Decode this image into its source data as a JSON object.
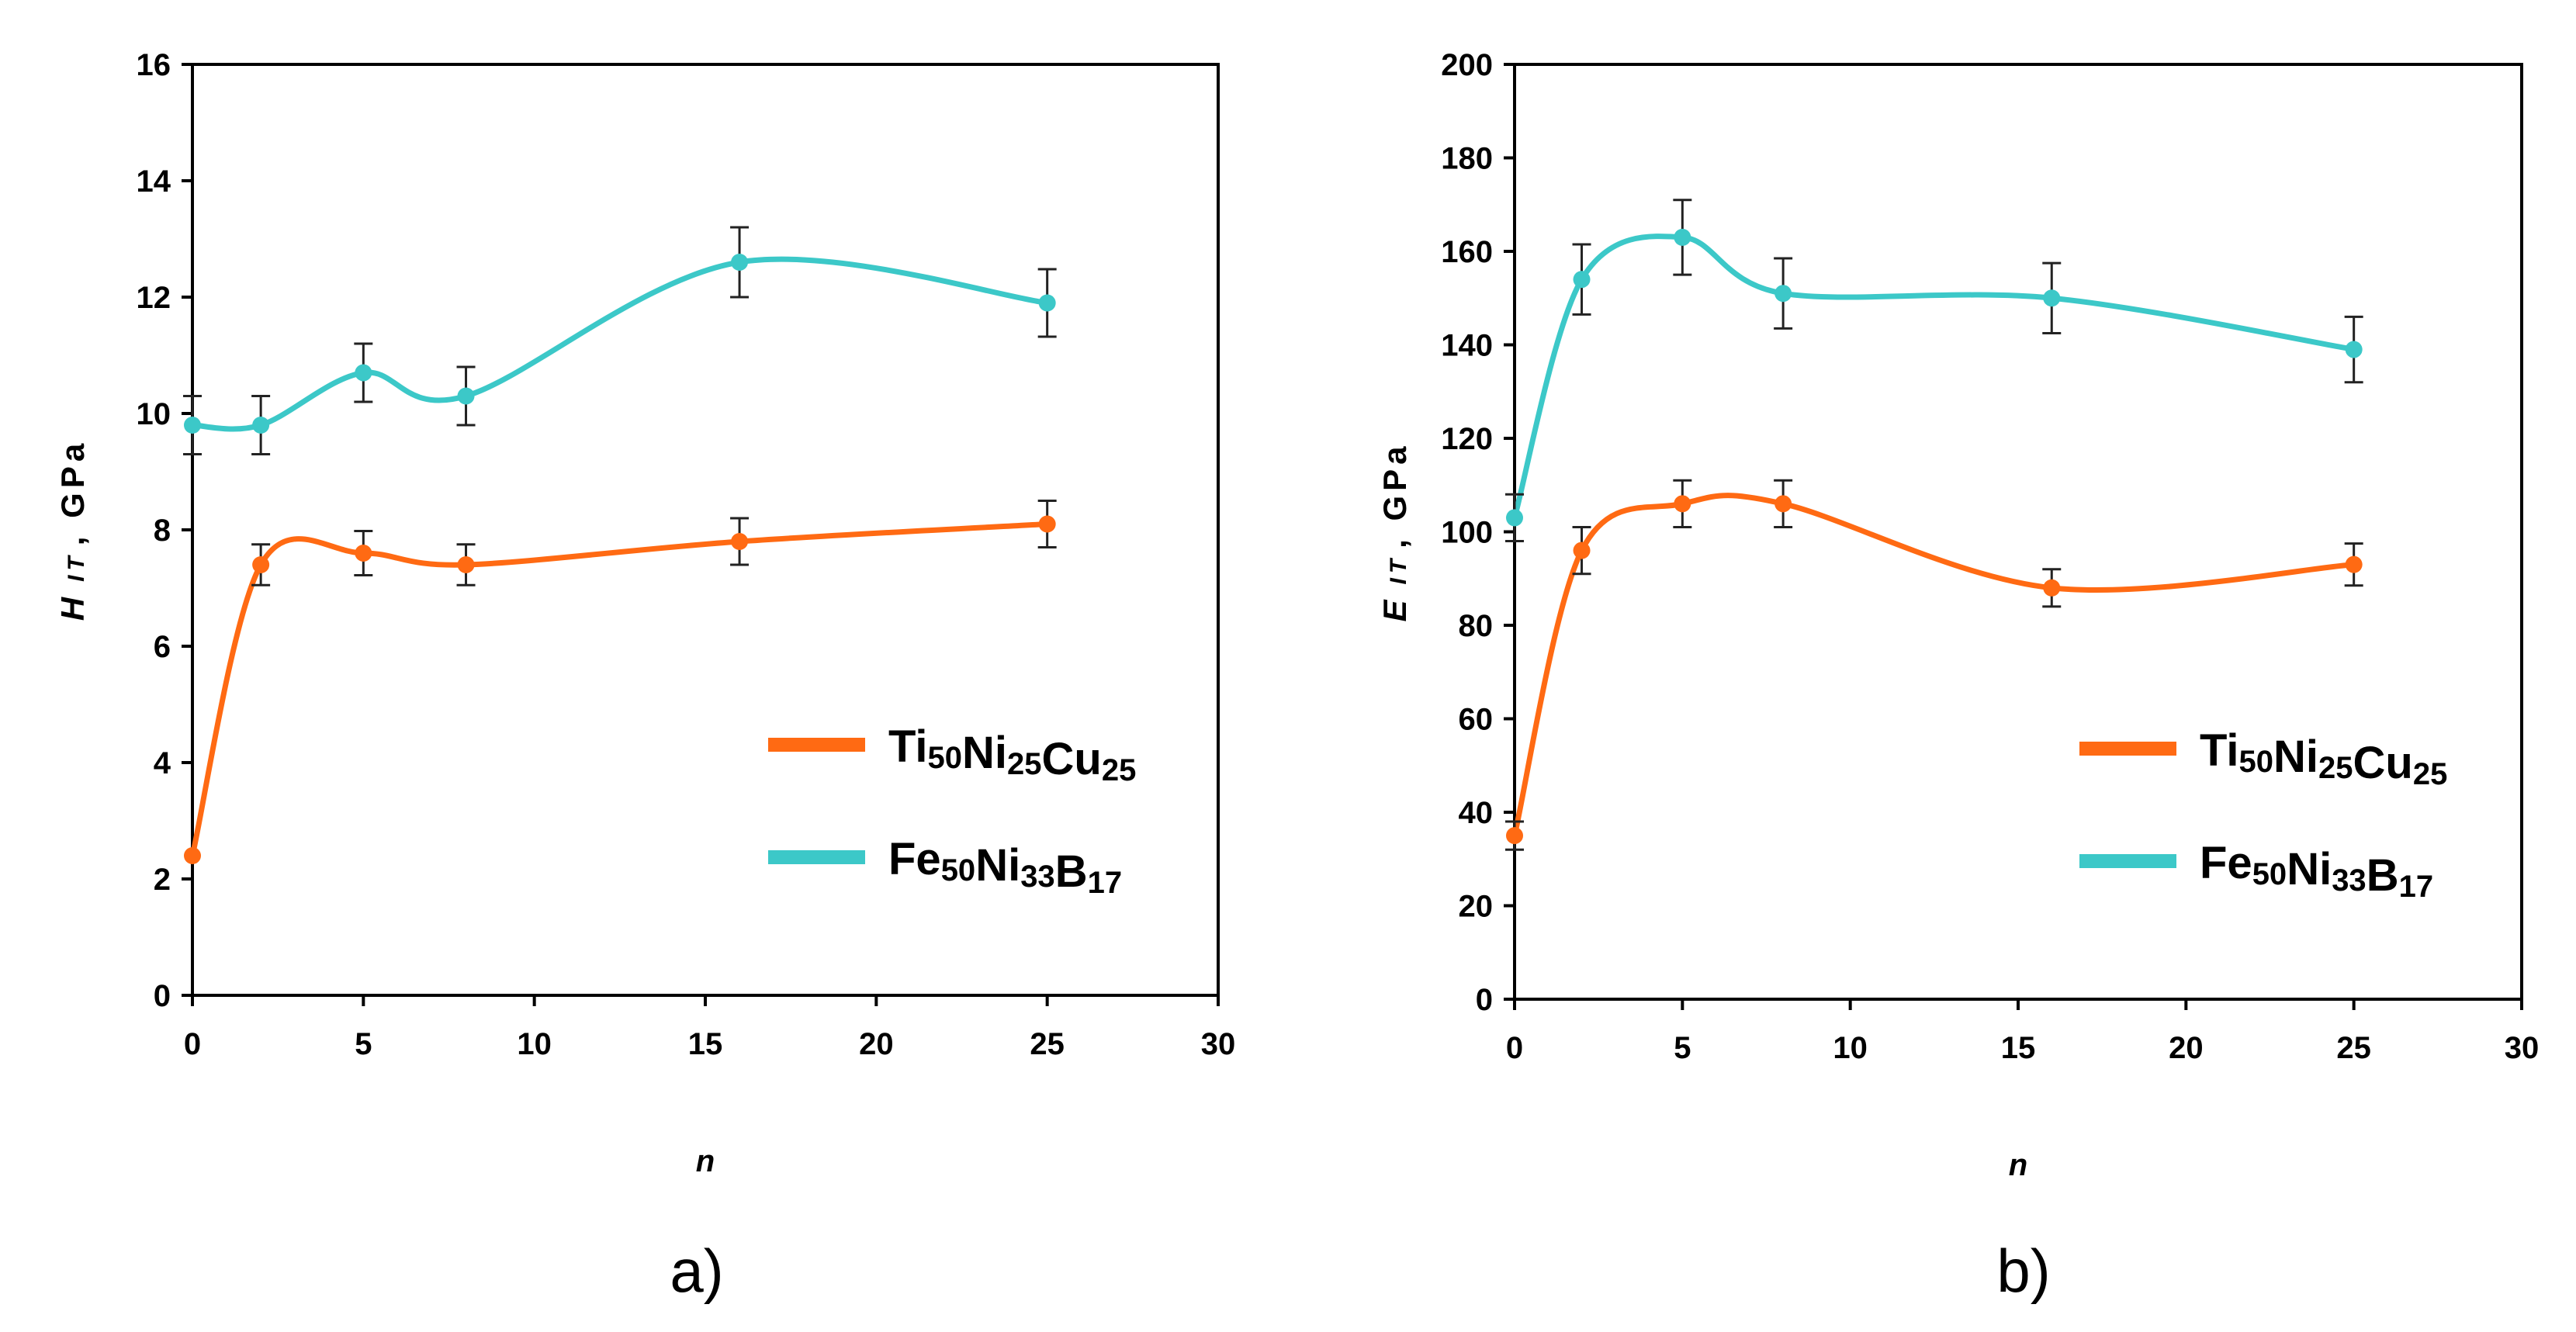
{
  "chart_data": [
    {
      "type": "line",
      "panel_label": "a)",
      "xlabel": "n",
      "ylabel_main": "H",
      "ylabel_sub": "IT",
      "ylabel_unit": ", GPa",
      "xlim": [
        0,
        30
      ],
      "ylim": [
        0,
        16
      ],
      "xticks": [
        0,
        5,
        10,
        15,
        20,
        25,
        30
      ],
      "yticks": [
        0,
        2,
        4,
        6,
        8,
        10,
        12,
        14,
        16
      ],
      "grid": false,
      "legend_position": "bottom-right",
      "series": [
        {
          "name": "Ti50Ni25Cu25",
          "legend_parts": [
            [
              "Ti",
              "50"
            ],
            [
              "Ni",
              "25"
            ],
            [
              "Cu",
              "25"
            ]
          ],
          "color": "#ff6a13",
          "x": [
            0,
            2,
            5,
            8,
            16,
            25
          ],
          "y": [
            2.4,
            7.4,
            7.6,
            7.4,
            7.8,
            8.1
          ],
          "err": [
            0,
            0.35,
            0.38,
            0.35,
            0.4,
            0.4
          ]
        },
        {
          "name": "Fe50Ni33B17",
          "legend_parts": [
            [
              "Fe",
              "50"
            ],
            [
              "Ni",
              "33"
            ],
            [
              "B",
              "17"
            ]
          ],
          "color": "#3cc8c8",
          "x": [
            0,
            2,
            5,
            8,
            16,
            25
          ],
          "y": [
            9.8,
            9.8,
            10.7,
            10.3,
            12.6,
            11.9
          ],
          "err": [
            0.5,
            0.5,
            0.5,
            0.5,
            0.6,
            0.58
          ]
        }
      ]
    },
    {
      "type": "line",
      "panel_label": "b)",
      "xlabel": "n",
      "ylabel_main": "E",
      "ylabel_sub": "IT",
      "ylabel_unit": ", GPa",
      "xlim": [
        0,
        30
      ],
      "ylim": [
        0,
        200
      ],
      "xticks": [
        0,
        5,
        10,
        15,
        20,
        25,
        30
      ],
      "yticks": [
        0,
        20,
        40,
        60,
        80,
        100,
        120,
        140,
        160,
        180,
        200
      ],
      "grid": false,
      "legend_position": "bottom-right",
      "series": [
        {
          "name": "Ti50Ni25Cu25",
          "legend_parts": [
            [
              "Ti",
              "50"
            ],
            [
              "Ni",
              "25"
            ],
            [
              "Cu",
              "25"
            ]
          ],
          "color": "#ff6a13",
          "x": [
            0,
            2,
            5,
            8,
            16,
            25
          ],
          "y": [
            35,
            96,
            106,
            106,
            88,
            93
          ],
          "err": [
            3,
            5,
            5,
            5,
            4,
            4.5
          ]
        },
        {
          "name": "Fe50Ni33B17",
          "legend_parts": [
            [
              "Fe",
              "50"
            ],
            [
              "Ni",
              "33"
            ],
            [
              "B",
              "17"
            ]
          ],
          "color": "#3cc8c8",
          "x": [
            0,
            2,
            5,
            8,
            16,
            25
          ],
          "y": [
            103,
            154,
            163,
            151,
            150,
            139
          ],
          "err": [
            5,
            7.5,
            8,
            7.5,
            7.5,
            7
          ]
        }
      ]
    }
  ]
}
